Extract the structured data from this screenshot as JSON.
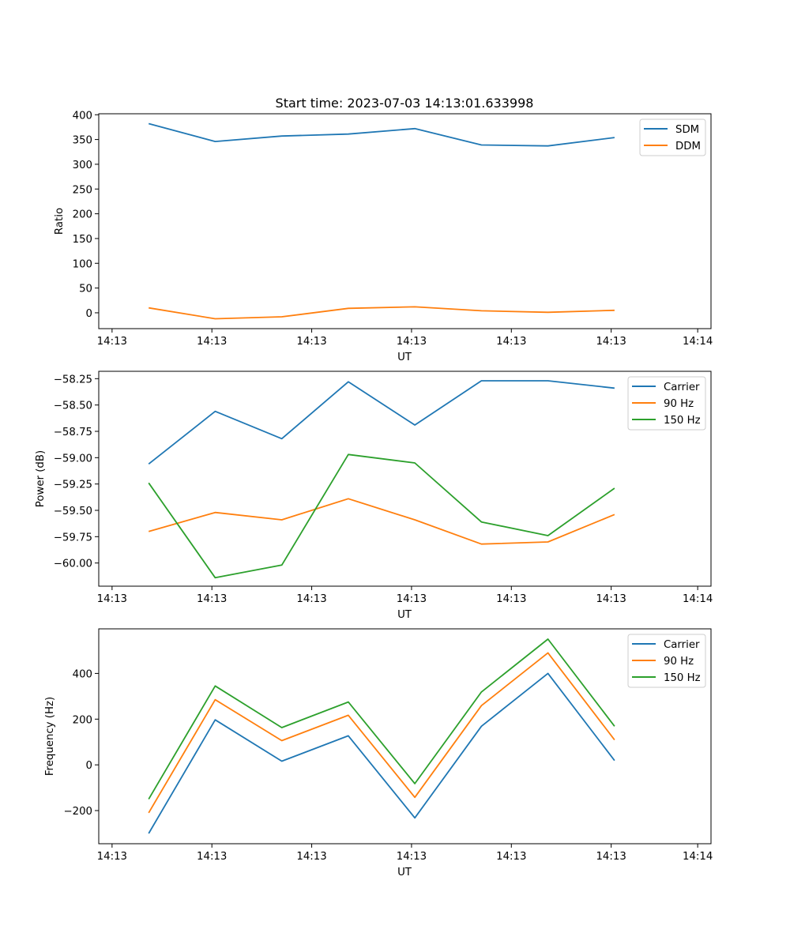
{
  "chart_data": [
    {
      "type": "line",
      "title": "Start time: 2023-07-03 14:13:01.633998",
      "xlabel": "UT",
      "ylabel": "Ratio",
      "x": [
        0.75,
        1.75,
        2.75,
        3.75,
        4.75,
        5.75,
        6.75,
        7.75
      ],
      "xlim": [
        0.0,
        9.2
      ],
      "xticks": [
        0.2,
        1.7,
        3.2,
        4.7,
        6.2,
        7.7,
        9.0
      ],
      "xtick_labels": [
        "14:13",
        "14:13",
        "14:13",
        "14:13",
        "14:13",
        "14:13",
        "14:14"
      ],
      "ylim": [
        -32,
        402
      ],
      "yticks": [
        0,
        50,
        100,
        150,
        200,
        250,
        300,
        350,
        400
      ],
      "ytick_labels": [
        "0",
        "50",
        "100",
        "150",
        "200",
        "250",
        "300",
        "350",
        "400"
      ],
      "legend": "top-right",
      "series": [
        {
          "name": "SDM",
          "color": "#1f77b4",
          "values": [
            382,
            346,
            357,
            361,
            372,
            339,
            337,
            354
          ]
        },
        {
          "name": "DDM",
          "color": "#ff7f0e",
          "values": [
            10,
            -12,
            -8,
            9,
            12,
            4,
            1,
            5
          ]
        }
      ]
    },
    {
      "type": "line",
      "title": "",
      "xlabel": "UT",
      "ylabel": "Power (dB)",
      "x": [
        0.75,
        1.75,
        2.75,
        3.75,
        4.75,
        5.75,
        6.75,
        7.75
      ],
      "xlim": [
        0.0,
        9.2
      ],
      "xticks": [
        0.2,
        1.7,
        3.2,
        4.7,
        6.2,
        7.7,
        9.0
      ],
      "xtick_labels": [
        "14:13",
        "14:13",
        "14:13",
        "14:13",
        "14:13",
        "14:13",
        "14:14"
      ],
      "ylim": [
        -60.22,
        -58.18
      ],
      "yticks": [
        -60.0,
        -59.75,
        -59.5,
        -59.25,
        -59.0,
        -58.75,
        -58.5,
        -58.25
      ],
      "ytick_labels": [
        "−60.00",
        "−59.75",
        "−59.50",
        "−59.25",
        "−59.00",
        "−58.75",
        "−58.50",
        "−58.25"
      ],
      "legend": "top-right",
      "series": [
        {
          "name": "Carrier",
          "color": "#1f77b4",
          "values": [
            -59.06,
            -58.56,
            -58.82,
            -58.28,
            -58.69,
            -58.27,
            -58.27,
            -58.34
          ]
        },
        {
          "name": "90 Hz",
          "color": "#ff7f0e",
          "values": [
            -59.7,
            -59.52,
            -59.59,
            -59.39,
            -59.59,
            -59.82,
            -59.8,
            -59.54
          ]
        },
        {
          "name": "150 Hz",
          "color": "#2ca02c",
          "values": [
            -59.24,
            -60.14,
            -60.02,
            -58.97,
            -59.05,
            -59.61,
            -59.74,
            -59.29
          ]
        }
      ]
    },
    {
      "type": "line",
      "title": "",
      "xlabel": "UT",
      "ylabel": "Frequency (Hz)",
      "x": [
        0.75,
        1.75,
        2.75,
        3.75,
        4.75,
        5.75,
        6.75,
        7.75
      ],
      "xlim": [
        0.0,
        9.2
      ],
      "xticks": [
        0.2,
        1.7,
        3.2,
        4.7,
        6.2,
        7.7,
        9.0
      ],
      "xtick_labels": [
        "14:13",
        "14:13",
        "14:13",
        "14:13",
        "14:13",
        "14:13",
        "14:14"
      ],
      "ylim": [
        -345,
        595
      ],
      "yticks": [
        -200,
        0,
        200,
        400
      ],
      "ytick_labels": [
        "−200",
        "0",
        "200",
        "400"
      ],
      "legend": "top-right",
      "series": [
        {
          "name": "Carrier",
          "color": "#1f77b4",
          "values": [
            -300,
            197,
            16,
            127,
            -232,
            169,
            400,
            19
          ]
        },
        {
          "name": "90 Hz",
          "color": "#ff7f0e",
          "values": [
            -210,
            285,
            106,
            217,
            -142,
            259,
            490,
            109
          ]
        },
        {
          "name": "150 Hz",
          "color": "#2ca02c",
          "values": [
            -150,
            345,
            163,
            275,
            -82,
            319,
            550,
            169
          ]
        }
      ]
    }
  ]
}
